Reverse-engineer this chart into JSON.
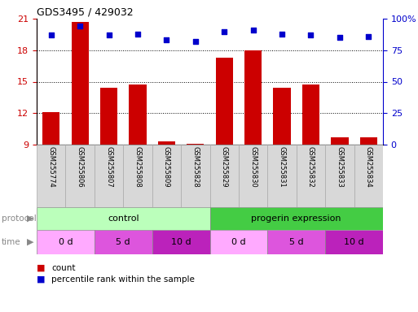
{
  "title": "GDS3495 / 429032",
  "samples": [
    "GSM255774",
    "GSM255806",
    "GSM255807",
    "GSM255808",
    "GSM255809",
    "GSM255828",
    "GSM255829",
    "GSM255830",
    "GSM255831",
    "GSM255832",
    "GSM255833",
    "GSM255834"
  ],
  "bar_values": [
    12.1,
    20.7,
    14.4,
    14.7,
    9.3,
    9.1,
    17.3,
    18.0,
    14.4,
    14.7,
    9.7,
    9.7
  ],
  "dot_values_pct": [
    87,
    94,
    87,
    88,
    83,
    82,
    90,
    91,
    88,
    87,
    85,
    86
  ],
  "bar_color": "#cc0000",
  "dot_color": "#0000cc",
  "ylim_left": [
    9,
    21
  ],
  "ylim_right": [
    0,
    100
  ],
  "yticks_left": [
    9,
    12,
    15,
    18,
    21
  ],
  "yticks_right": [
    0,
    25,
    50,
    75,
    100
  ],
  "grid_values": [
    12,
    15,
    18
  ],
  "xlabel_bg": "#d8d8d8",
  "protocol_colors": [
    "#bbffbb",
    "#44cc44"
  ],
  "time_colors_list": [
    "#ffaaff",
    "#dd55dd",
    "#bb22bb"
  ],
  "legend_count_color": "#cc0000",
  "legend_pct_color": "#0000cc",
  "background_color": "#ffffff",
  "label_color": "#888888"
}
